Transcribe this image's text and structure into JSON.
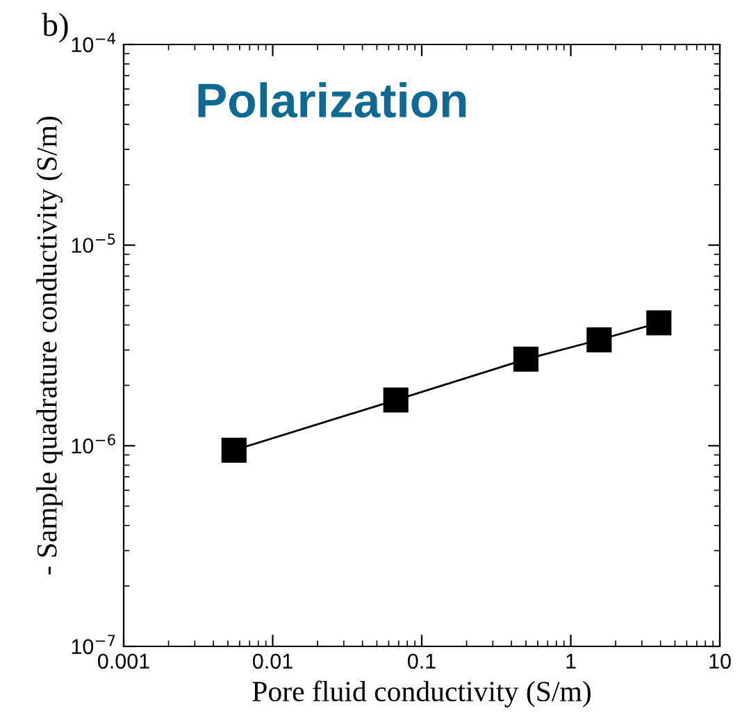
{
  "chart_data": {
    "type": "line",
    "xlabel": "Pore fluid conductivity (S/m)",
    "ylabel": "- Sample quadrature conductivity (S/m)",
    "annotations": [
      "b)",
      "Polarization"
    ],
    "x": [
      0.0055,
      0.067,
      0.5,
      1.55,
      3.9
    ],
    "series": [
      {
        "color": "#000000",
        "values": [
          9.5e-07,
          1.69e-06,
          2.7e-06,
          3.37e-06,
          4.1e-06
        ]
      }
    ],
    "log": "xy",
    "marker": "square",
    "line_style": "solid",
    "grid": false,
    "legend": false,
    "xlim": [
      0.001,
      10
    ],
    "ylim": [
      1e-07,
      0.0001
    ],
    "xticks": [
      0.001,
      0.01,
      0.1,
      1,
      10
    ],
    "yticks": [
      {
        "value": 1e-07,
        "label": "10$^{−7}$"
      },
      {
        "value": 1e-06,
        "label": "10$^{−6}$"
      },
      {
        "value": 1e-05,
        "label": "10$^{−5}$"
      },
      {
        "value": 0.0001,
        "label": "10$^{−4}$"
      }
    ]
  }
}
